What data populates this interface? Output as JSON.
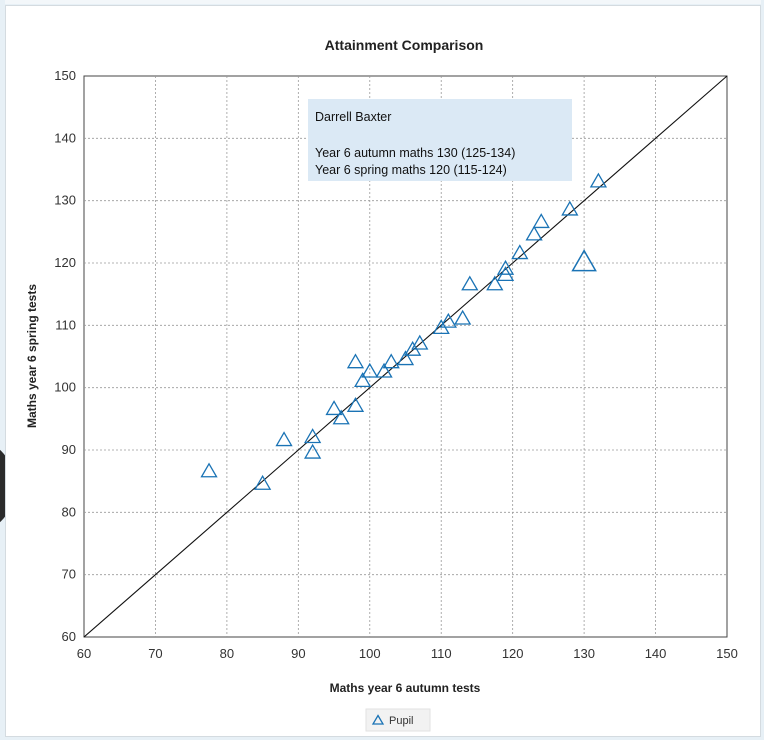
{
  "chart_data": {
    "type": "scatter",
    "title": "Attainment Comparison",
    "xlabel": "Maths year 6 autumn tests",
    "ylabel": "Maths year 6 spring tests",
    "xlim": [
      60,
      150
    ],
    "ylim": [
      60,
      150
    ],
    "xticks": [
      60,
      70,
      80,
      90,
      100,
      110,
      120,
      130,
      140,
      150
    ],
    "yticks": [
      60,
      70,
      80,
      90,
      100,
      110,
      120,
      130,
      140,
      150
    ],
    "grid": true,
    "reference_line": {
      "from": [
        60,
        60
      ],
      "to": [
        150,
        150
      ]
    },
    "legend": {
      "position": "bottom-center",
      "entries": [
        "Pupil"
      ]
    },
    "series": [
      {
        "name": "Pupil",
        "marker": "triangle-open",
        "color": "#1a73b5",
        "points": [
          [
            77.5,
            86.5
          ],
          [
            85,
            84.5
          ],
          [
            88,
            91.5
          ],
          [
            92,
            92
          ],
          [
            92,
            89.5
          ],
          [
            95,
            96.5
          ],
          [
            96,
            95
          ],
          [
            98,
            97
          ],
          [
            98,
            104
          ],
          [
            99,
            101
          ],
          [
            100,
            102.5
          ],
          [
            102,
            102.5
          ],
          [
            103,
            104
          ],
          [
            105,
            104.5
          ],
          [
            106,
            106
          ],
          [
            107,
            107
          ],
          [
            110,
            109.5
          ],
          [
            111,
            110.5
          ],
          [
            113,
            111
          ],
          [
            114,
            116.5
          ],
          [
            117.5,
            116.5
          ],
          [
            119,
            118
          ],
          [
            119,
            119
          ],
          [
            121,
            121.5
          ],
          [
            123,
            124.5
          ],
          [
            124,
            126.5
          ],
          [
            128,
            128.5
          ],
          [
            132,
            133
          ]
        ]
      }
    ],
    "highlighted_point": {
      "x": 130,
      "y": 120
    },
    "tooltip": {
      "name": "Darrell Baxter",
      "line1": "Year 6 autumn maths 130 (125-134)",
      "line2": "Year 6 spring maths 120 (115-124)"
    },
    "colors": {
      "marker": "#1a73b5",
      "tooltip_bg": "#dbe9f5",
      "grid": "#9a9a9a"
    }
  }
}
